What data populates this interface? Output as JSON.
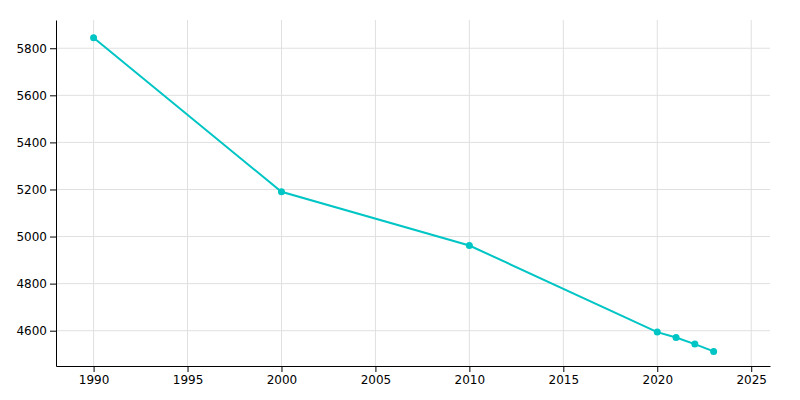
{
  "chart_data": {
    "type": "line",
    "x": [
      1990,
      2000,
      2010,
      2020,
      2021,
      2022,
      2023
    ],
    "values": [
      5845,
      5190,
      4962,
      4594,
      4571,
      4543,
      4512
    ],
    "color": "#00c5c5",
    "marker": "circle",
    "xlim": [
      1988,
      2026
    ],
    "ylim": [
      4450,
      5920
    ],
    "xticks": [
      1990,
      1995,
      2000,
      2005,
      2010,
      2015,
      2020,
      2025
    ],
    "yticks": [
      4600,
      4800,
      5000,
      5200,
      5400,
      5600,
      5800
    ],
    "grid": true
  }
}
